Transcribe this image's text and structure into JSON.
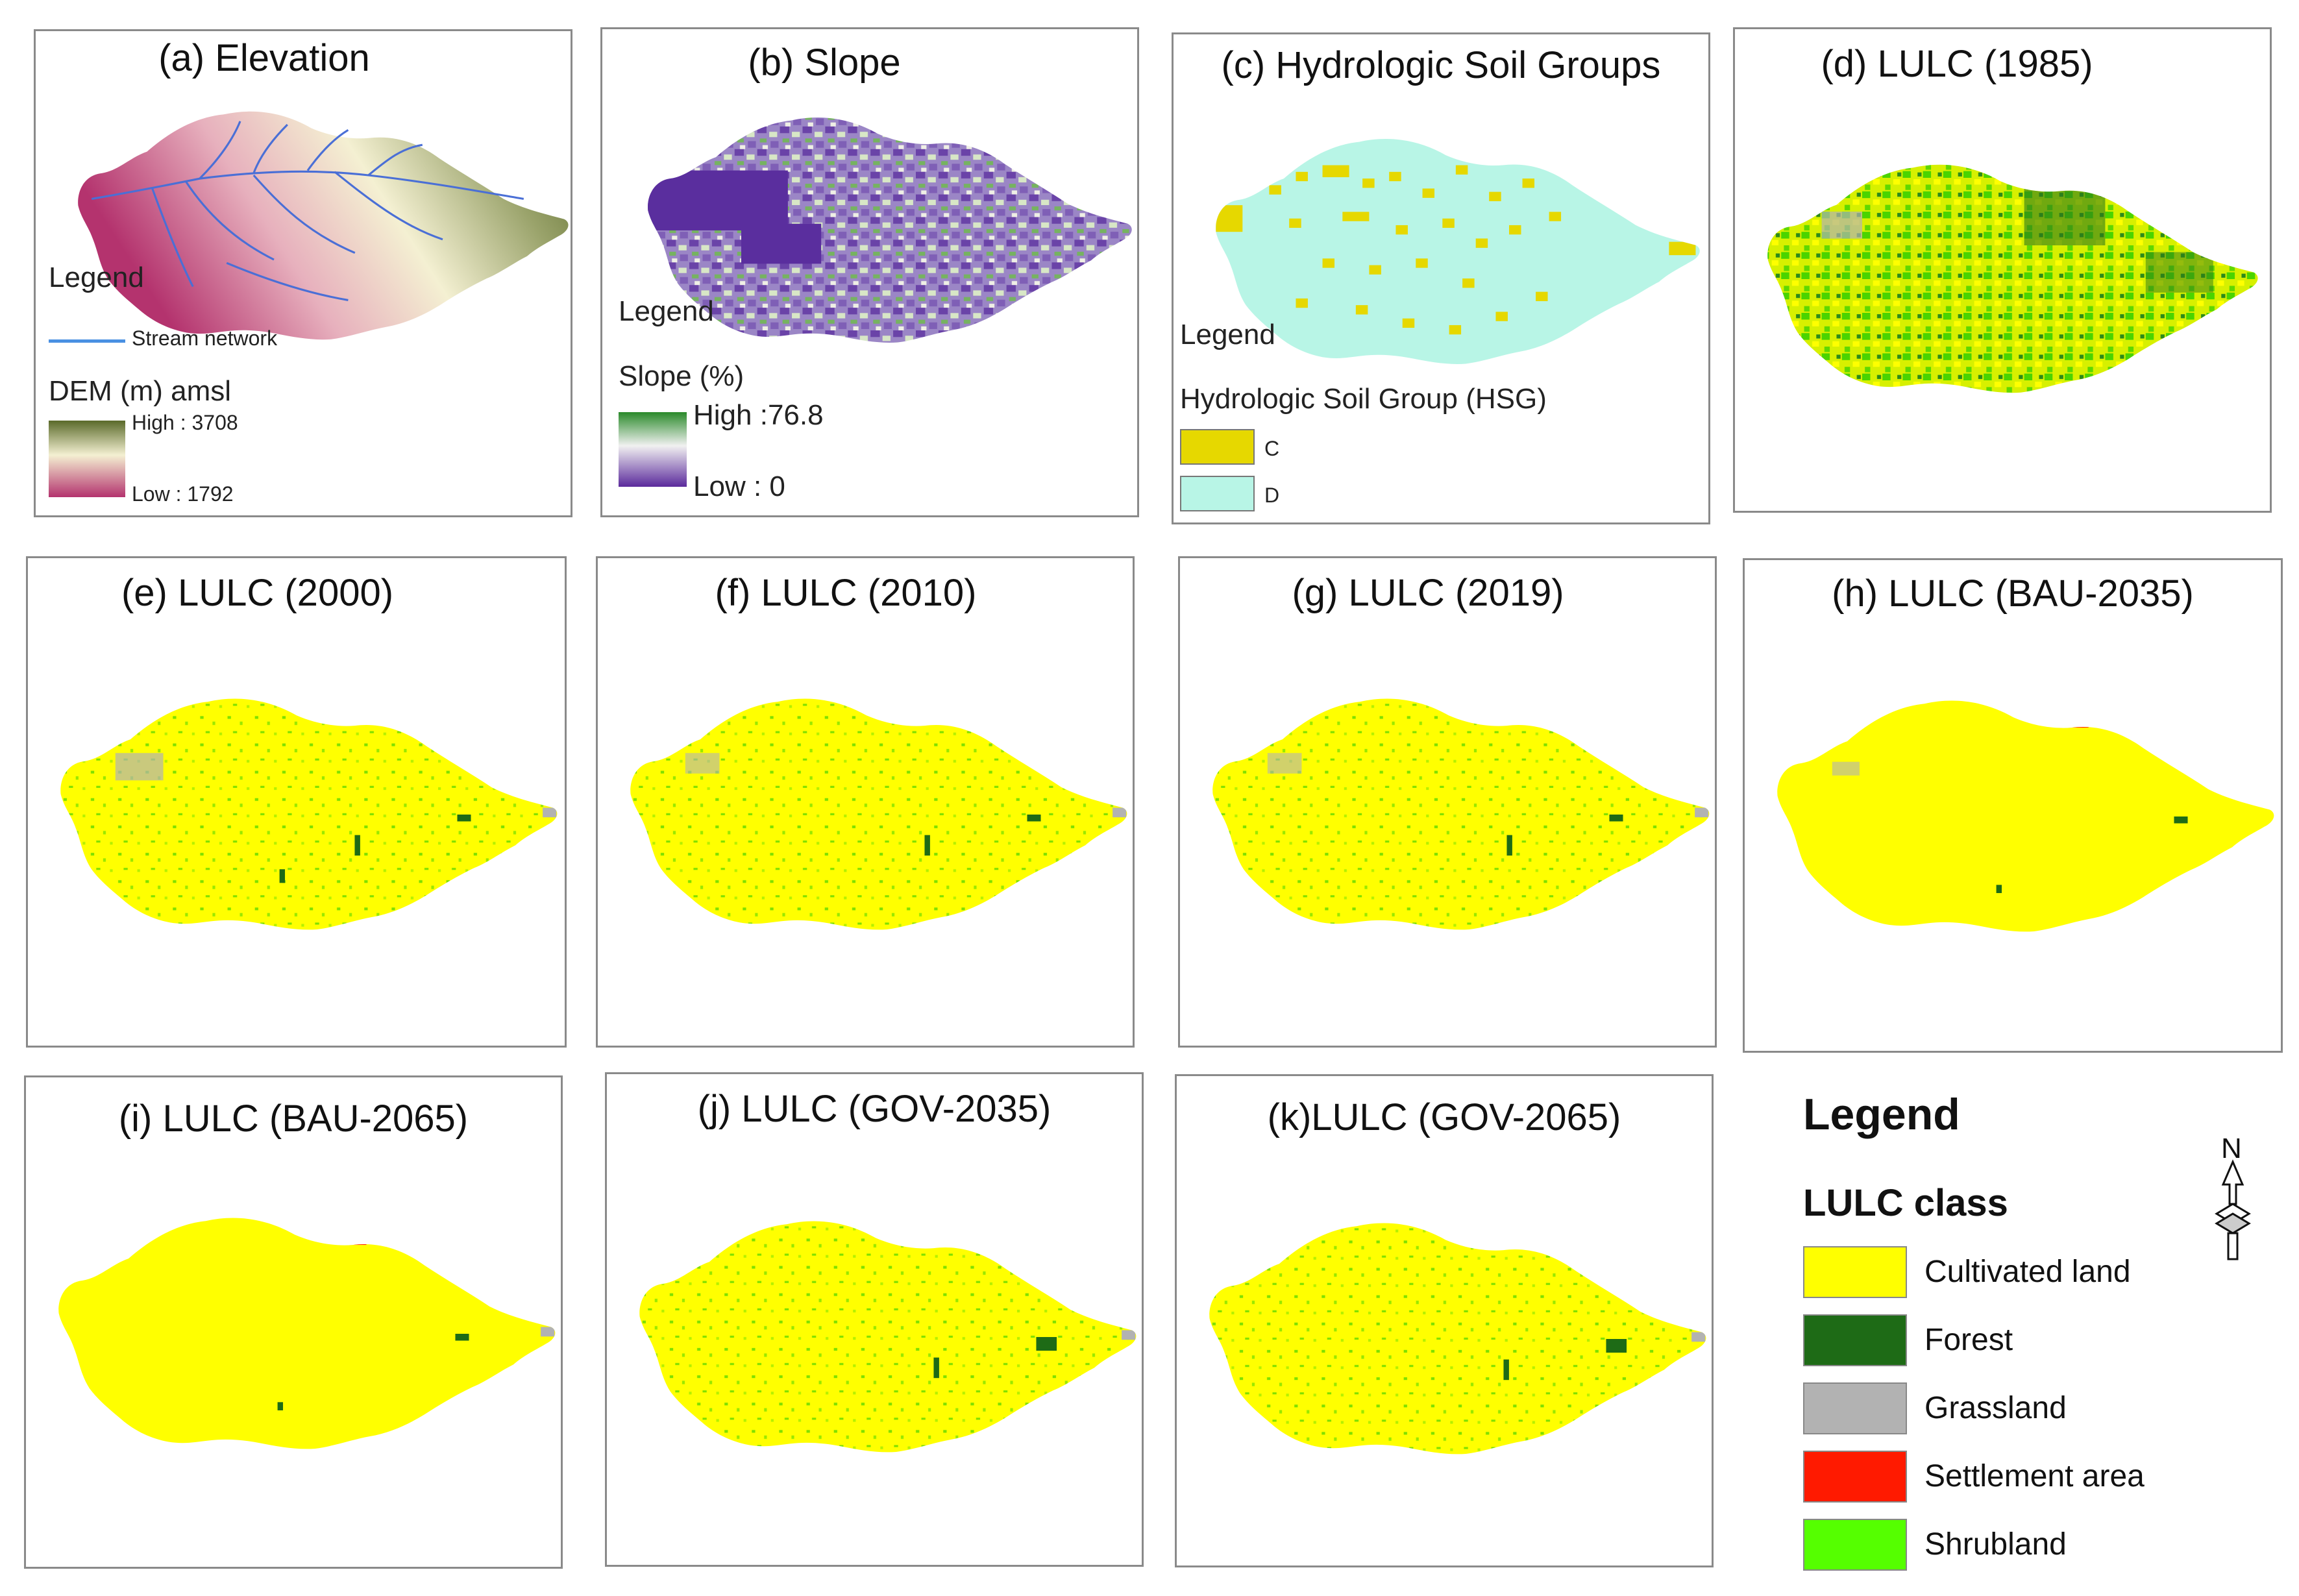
{
  "panels": [
    {
      "id": "a",
      "title": "(a) Elevation"
    },
    {
      "id": "b",
      "title": "(b) Slope"
    },
    {
      "id": "c",
      "title": "(c) Hydrologic Soil Groups"
    },
    {
      "id": "d",
      "title": "(d) LULC (1985)"
    },
    {
      "id": "e",
      "title": "(e) LULC (2000)"
    },
    {
      "id": "f",
      "title": "(f) LULC (2010)"
    },
    {
      "id": "g",
      "title": "(g) LULC (2019)"
    },
    {
      "id": "h",
      "title": "(h) LULC (BAU-2035)"
    },
    {
      "id": "i",
      "title": "(i) LULC (BAU-2065)"
    },
    {
      "id": "j",
      "title": "(j) LULC (GOV-2035)"
    },
    {
      "id": "k",
      "title": "(k)LULC (GOV-2065)"
    }
  ],
  "elevation_legend": {
    "legend": "Legend",
    "stream": "Stream network",
    "dem_title": "DEM (m) amsl",
    "high": "High : 3708",
    "low": "Low : 1792"
  },
  "slope_legend": {
    "legend": "Legend",
    "title": "Slope (%)",
    "high": "High :76.8",
    "low": "Low : 0"
  },
  "hsg_legend": {
    "legend": "Legend",
    "title": "Hydrologic Soil Group (HSG)",
    "items": [
      {
        "label": "C",
        "color": "#e6d800"
      },
      {
        "label": "D",
        "color": "#b8f5e6"
      }
    ]
  },
  "lulc_legend": {
    "title": "Legend",
    "subtitle": "LULC class",
    "north": "N",
    "classes": [
      {
        "label": "Cultivated land",
        "color": "#ffff00"
      },
      {
        "label": "Forest",
        "color": "#1e6b16"
      },
      {
        "label": "Grassland",
        "color": "#b2b2b2"
      },
      {
        "label": "Settlement area",
        "color": "#ff1a00"
      },
      {
        "label": "Shrubland",
        "color": "#55ff00"
      }
    ]
  },
  "colors": {
    "dem_high": "#6b7a33",
    "dem_mid": "#f3efd0",
    "dem_low": "#b4336e",
    "slope_high": "#2a8a2a",
    "slope_low": "#5b2a9c",
    "stream": "#4a6fd6"
  }
}
